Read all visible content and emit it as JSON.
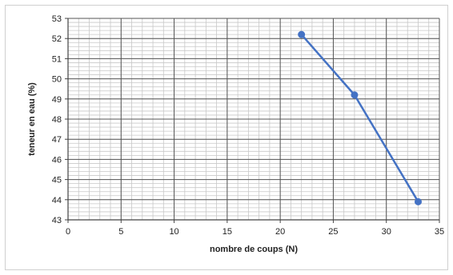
{
  "chart_data": {
    "type": "line",
    "title": "",
    "xlabel": "nombre de coups (N)",
    "ylabel": "teneur en eau (%)",
    "xlim": [
      0,
      35
    ],
    "ylim": [
      43,
      53
    ],
    "x_ticks": [
      0,
      5,
      10,
      15,
      20,
      25,
      30,
      35
    ],
    "y_ticks": [
      43,
      44,
      45,
      46,
      47,
      48,
      49,
      50,
      51,
      52,
      53
    ],
    "x_minor_step": 1,
    "y_minor_step": 0.2,
    "grid": true,
    "legend": "none",
    "series": [
      {
        "x": [
          22,
          27,
          33
        ],
        "values": [
          52.2,
          49.2,
          43.9
        ]
      }
    ],
    "colors": {
      "series": "#4472c4",
      "grid_major": "#555555",
      "grid_minor": "#c8c8c8",
      "axis": "#444444"
    }
  }
}
